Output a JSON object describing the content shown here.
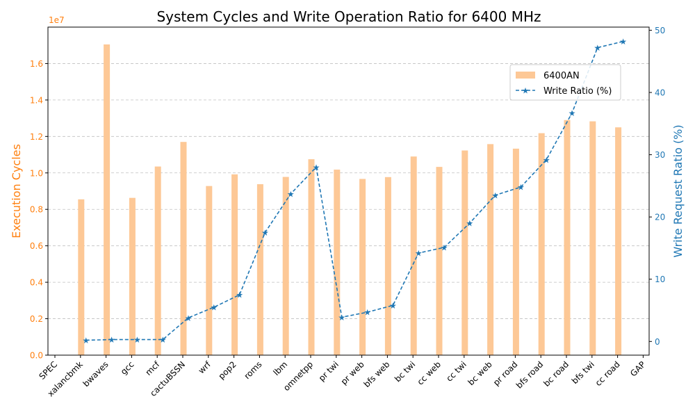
{
  "chart_data": {
    "type": "bar+line",
    "title": "System Cycles and Write Operation Ratio for 6400 MHz",
    "categories": [
      "SPEC",
      "xalancbmk",
      "bwaves",
      "gcc",
      "mcf",
      "cactuBSSN",
      "wrf",
      "pop2",
      "roms",
      "lbm",
      "omnetpp",
      "pr twi",
      "pr web",
      "bfs web",
      "bc twi",
      "cc web",
      "cc twi",
      "bc web",
      "pr road",
      "bfs road",
      "bc road",
      "bfs twi",
      "cc road",
      "GAP"
    ],
    "left_axis": {
      "label": "Execution Cycles",
      "scale_label": "1e7",
      "ylim": [
        0,
        1.8
      ],
      "ticks": [
        0.0,
        0.2,
        0.4,
        0.6,
        0.8,
        1.0,
        1.2,
        1.4,
        1.6
      ],
      "tick_labels": [
        "0.0",
        "0.2",
        "0.4",
        "0.6",
        "0.8",
        "1.0",
        "1.2",
        "1.4",
        "1.6"
      ],
      "color": "#ff7f0e"
    },
    "right_axis": {
      "label": "Write Request Ratio (%)",
      "ylim": [
        -2.2,
        50.5
      ],
      "ticks": [
        0,
        10,
        20,
        30,
        40,
        50
      ],
      "tick_labels": [
        "0",
        "10",
        "20",
        "30",
        "40",
        "50"
      ],
      "color": "#1f77b4"
    },
    "series": [
      {
        "name": "6400AN",
        "type": "bar",
        "axis": "left",
        "color": "#fdc896",
        "values": [
          null,
          0.855,
          1.705,
          0.863,
          1.035,
          1.17,
          0.928,
          0.992,
          0.938,
          0.978,
          1.075,
          1.018,
          0.967,
          0.977,
          1.09,
          1.033,
          1.123,
          1.158,
          1.133,
          1.218,
          1.29,
          1.283,
          1.25,
          null
        ]
      },
      {
        "name": "Write Ratio (%)",
        "type": "line",
        "axis": "right",
        "color": "#1f77b4",
        "values": [
          null,
          0.2,
          0.3,
          0.3,
          0.3,
          3.8,
          5.5,
          7.5,
          17.5,
          23.7,
          28.0,
          3.9,
          4.7,
          5.8,
          14.2,
          15.1,
          19.0,
          23.5,
          24.8,
          29.2,
          36.7,
          47.2,
          48.2,
          null
        ]
      }
    ],
    "grid": "horizontal dashed",
    "legend": "top-right"
  }
}
